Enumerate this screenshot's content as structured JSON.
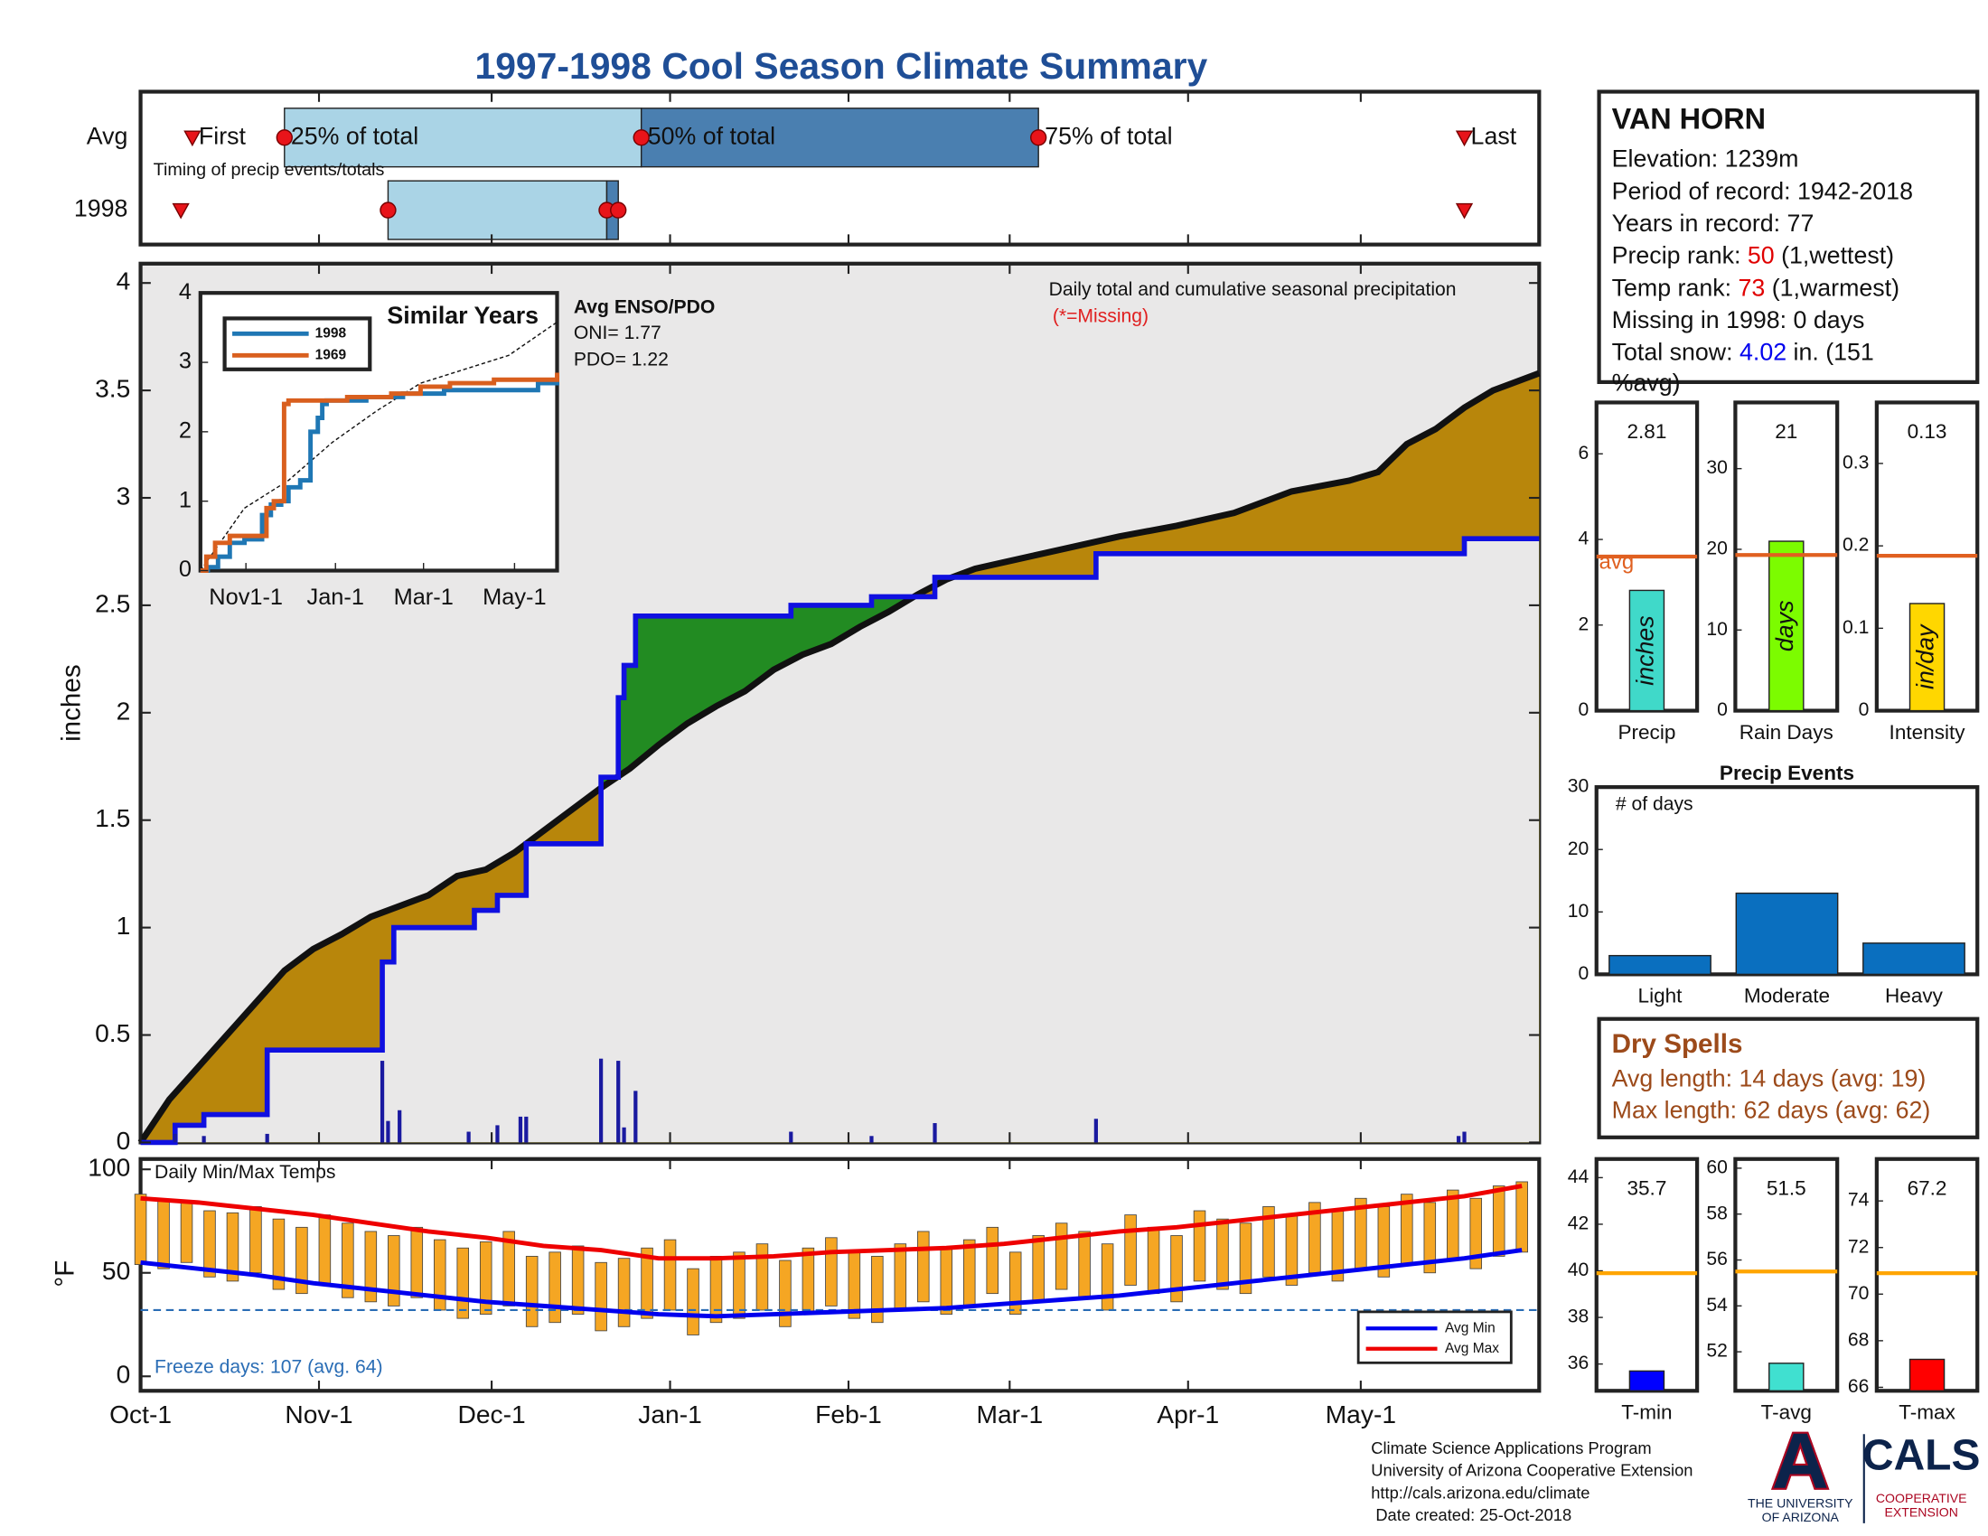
{
  "title": "1997-1998 Cool Season Climate Summary",
  "chart_data": [
    {
      "type": "timeline",
      "note": "Timing of precip events/totals",
      "xlim": [
        0,
        243
      ],
      "marker_labels": {
        "first": "First",
        "q25": "25% of total",
        "q50": "50% of total",
        "q75": "75% of total",
        "last": "Last"
      },
      "colors": {
        "early": "#aad4e6",
        "late": "#4a7fb0",
        "marker": "#e8141a"
      },
      "rows": [
        {
          "label": "Avg",
          "first": 9,
          "q25": 25,
          "q50": 87,
          "q75": 156,
          "last": 230
        },
        {
          "label": "1998",
          "first": 7,
          "q25": 43,
          "q50": 81,
          "q75": 83,
          "last": 230
        }
      ]
    },
    {
      "type": "area",
      "ylabel": "inches",
      "annotation": "Daily total and cumulative seasonal precipitation",
      "missing_note": "(*=Missing)",
      "xlim": [
        0,
        243
      ],
      "ylim": [
        0,
        4.09
      ],
      "yticks": [
        0,
        0.5,
        1,
        1.5,
        2,
        2.5,
        3,
        3.5,
        4
      ],
      "background": "#e9e8e8",
      "above_avg_color": "#228b22",
      "below_avg_color": "#b8860b",
      "average": {
        "color": "#111111",
        "x": [
          0,
          5,
          10,
          15,
          20,
          25,
          30,
          35,
          40,
          45,
          50,
          55,
          60,
          65,
          70,
          75,
          80,
          85,
          90,
          95,
          100,
          105,
          110,
          115,
          120,
          125,
          130,
          135,
          140,
          145,
          150,
          155,
          160,
          170,
          180,
          190,
          200,
          210,
          215,
          220,
          225,
          230,
          235,
          243
        ],
        "values": [
          0,
          0.2,
          0.35,
          0.5,
          0.65,
          0.8,
          0.9,
          0.97,
          1.05,
          1.1,
          1.15,
          1.24,
          1.27,
          1.35,
          1.45,
          1.55,
          1.65,
          1.74,
          1.85,
          1.95,
          2.03,
          2.1,
          2.2,
          2.27,
          2.32,
          2.4,
          2.47,
          2.55,
          2.62,
          2.67,
          2.7,
          2.73,
          2.76,
          2.82,
          2.87,
          2.93,
          3.03,
          3.08,
          3.12,
          3.25,
          3.32,
          3.42,
          3.5,
          3.58
        ]
      },
      "observed": {
        "color": "#1010e0",
        "x": [
          0,
          6,
          11,
          22,
          42,
          44,
          58,
          62,
          67,
          80,
          83,
          84,
          86,
          113,
          127,
          138,
          166,
          230,
          243
        ],
        "values": [
          0,
          0.08,
          0.13,
          0.43,
          0.84,
          1.0,
          1.08,
          1.15,
          1.39,
          1.7,
          2.07,
          2.22,
          2.45,
          2.5,
          2.54,
          2.63,
          2.74,
          2.81,
          2.81
        ]
      },
      "daily": {
        "color": "#1a1aa0",
        "x": [
          6,
          11,
          22,
          42,
          43,
          45,
          57,
          62,
          66,
          67,
          80,
          83,
          84,
          86,
          113,
          127,
          138,
          166,
          229,
          230
        ],
        "values": [
          0.04,
          0.03,
          0.04,
          0.38,
          0.1,
          0.15,
          0.05,
          0.08,
          0.12,
          0.12,
          0.39,
          0.38,
          0.07,
          0.24,
          0.05,
          0.03,
          0.09,
          0.11,
          0.03,
          0.05
        ]
      }
    },
    {
      "type": "line",
      "title": "Similar Years",
      "xlim": [
        0,
        243
      ],
      "ylim": [
        0,
        4
      ],
      "yticks": [
        0,
        1,
        2,
        3,
        4
      ],
      "xticks": [
        {
          "value": 31,
          "label": "Nov1-1"
        },
        {
          "value": 92,
          "label": "Jan-1"
        },
        {
          "value": 152,
          "label": "Mar-1"
        },
        {
          "value": 214,
          "label": "May-1"
        }
      ],
      "series": [
        {
          "name": "1998",
          "color": "#1f77b4",
          "x": [
            0,
            5,
            12,
            20,
            30,
            42,
            48,
            55,
            60,
            68,
            75,
            80,
            83,
            86,
            100,
            113,
            127,
            138,
            166,
            200,
            230,
            243
          ],
          "values": [
            0,
            0.05,
            0.2,
            0.4,
            0.45,
            0.8,
            0.95,
            1.0,
            1.2,
            1.3,
            2.0,
            2.2,
            2.4,
            2.45,
            2.45,
            2.5,
            2.5,
            2.55,
            2.6,
            2.6,
            2.7,
            2.81
          ]
        },
        {
          "name": "1969",
          "color": "#d95f1e",
          "x": [
            0,
            4,
            10,
            20,
            35,
            45,
            50,
            57,
            60,
            100,
            130,
            150,
            170,
            200,
            240,
            243
          ],
          "values": [
            0,
            0.2,
            0.4,
            0.5,
            0.5,
            0.9,
            1.0,
            2.4,
            2.45,
            2.5,
            2.55,
            2.65,
            2.7,
            2.75,
            2.75,
            2.85
          ]
        }
      ],
      "average": {
        "color": "#111111",
        "x": [
          0,
          30,
          60,
          90,
          120,
          150,
          180,
          210,
          243
        ],
        "values": [
          0,
          0.9,
          1.3,
          1.85,
          2.3,
          2.7,
          2.9,
          3.1,
          3.58
        ]
      },
      "enso": {
        "title": "Avg ENSO/PDO",
        "lines": [
          "ONI= 1.77",
          "PDO= 1.22"
        ]
      }
    },
    {
      "type": "bar",
      "categories": [
        "Precip"
      ],
      "values": [
        2.81
      ],
      "color": "#40d9c9",
      "bar_label": "inches",
      "avg": 3.6,
      "avg_label": "avg",
      "avg_color": "#e06020",
      "ylim": [
        0,
        7.2
      ],
      "yticks": [
        0,
        2,
        4,
        6
      ]
    },
    {
      "type": "bar",
      "categories": [
        "Rain Days"
      ],
      "values": [
        21
      ],
      "color": "#7cfc00",
      "bar_label": "days",
      "avg": 19.3,
      "avg_color": "#e06020",
      "ylim": [
        0,
        38.2
      ],
      "yticks": [
        0,
        10,
        20,
        30
      ]
    },
    {
      "type": "bar",
      "categories": [
        "Intensity"
      ],
      "values": [
        0.13
      ],
      "color": "#ffd700",
      "bar_label": "in/day",
      "avg": 0.188,
      "avg_color": "#e06020",
      "ylim": [
        0,
        0.374
      ],
      "yticks": [
        0,
        0.1,
        0.2,
        0.3
      ]
    },
    {
      "type": "bar",
      "title": "Precip Events",
      "note": "# of days",
      "categories": [
        "Light",
        "Moderate",
        "Heavy"
      ],
      "values": [
        3,
        13,
        5
      ],
      "color": "#0a6fbf",
      "ylim": [
        0,
        30
      ],
      "yticks": [
        0,
        10,
        20,
        30
      ]
    },
    {
      "type": "bar",
      "categories": [
        "T-min"
      ],
      "values": [
        35.7
      ],
      "color": "#0000ff",
      "avg": 39.9,
      "avg_color": "#ffa500",
      "ylim": [
        34.85,
        44.8
      ],
      "yticks": [
        36,
        38,
        40,
        42,
        44
      ]
    },
    {
      "type": "bar",
      "categories": [
        "T-avg"
      ],
      "values": [
        51.5
      ],
      "color": "#40e0d0",
      "avg": 55.5,
      "avg_color": "#ffa500",
      "ylim": [
        50.3,
        60.4
      ],
      "yticks": [
        52,
        54,
        56,
        58,
        60
      ]
    },
    {
      "type": "bar",
      "categories": [
        "T-max"
      ],
      "values": [
        67.2
      ],
      "color": "#ff0000",
      "avg": 70.9,
      "avg_color": "#ffa500",
      "ylim": [
        65.85,
        75.8
      ],
      "yticks": [
        66,
        68,
        70,
        72,
        74
      ]
    },
    {
      "type": "range",
      "title": "Daily Min/Max Temps",
      "ylabel": "°F",
      "xlim": [
        0,
        243
      ],
      "ylim": [
        -7,
        105
      ],
      "yticks": [
        0,
        50,
        100
      ],
      "xticks": [
        {
          "value": 0,
          "label": "Oct-1"
        },
        {
          "value": 31,
          "label": "Nov-1"
        },
        {
          "value": 61,
          "label": "Dec-1"
        },
        {
          "value": 92,
          "label": "Jan-1"
        },
        {
          "value": 123,
          "label": "Feb-1"
        },
        {
          "value": 151,
          "label": "Mar-1"
        },
        {
          "value": 182,
          "label": "Apr-1"
        },
        {
          "value": 212,
          "label": "May-1"
        }
      ],
      "daily": {
        "color": "#f5a623",
        "x": [
          0,
          4,
          8,
          12,
          16,
          20,
          24,
          28,
          32,
          36,
          40,
          44,
          48,
          52,
          56,
          60,
          64,
          68,
          72,
          76,
          80,
          84,
          88,
          92,
          96,
          100,
          104,
          108,
          112,
          116,
          120,
          124,
          128,
          132,
          136,
          140,
          144,
          148,
          152,
          156,
          160,
          164,
          168,
          172,
          176,
          180,
          184,
          188,
          192,
          196,
          200,
          204,
          208,
          212,
          216,
          220,
          224,
          228,
          232,
          236,
          240
        ],
        "max": [
          88,
          85,
          84,
          80,
          79,
          82,
          76,
          72,
          78,
          74,
          70,
          68,
          72,
          66,
          62,
          65,
          70,
          58,
          60,
          63,
          55,
          57,
          62,
          66,
          52,
          58,
          60,
          64,
          56,
          62,
          67,
          60,
          58,
          64,
          70,
          62,
          66,
          72,
          60,
          68,
          74,
          70,
          64,
          78,
          72,
          68,
          80,
          76,
          74,
          82,
          78,
          84,
          80,
          86,
          82,
          88,
          84,
          90,
          86,
          92,
          94
        ],
        "min": [
          54,
          52,
          55,
          48,
          46,
          50,
          42,
          40,
          44,
          38,
          36,
          34,
          38,
          32,
          28,
          30,
          34,
          24,
          26,
          30,
          22,
          24,
          28,
          32,
          20,
          26,
          28,
          32,
          24,
          30,
          34,
          28,
          26,
          32,
          36,
          30,
          34,
          40,
          30,
          36,
          42,
          38,
          32,
          44,
          40,
          36,
          46,
          42,
          40,
          48,
          44,
          50,
          46,
          52,
          48,
          54,
          50,
          56,
          52,
          58,
          60
        ]
      },
      "series": [
        {
          "name": "Avg Min",
          "color": "#0000ee",
          "x": [
            0,
            10,
            20,
            30,
            40,
            50,
            60,
            70,
            80,
            90,
            100,
            110,
            120,
            130,
            140,
            150,
            160,
            170,
            180,
            190,
            200,
            210,
            220,
            230,
            240
          ],
          "values": [
            55,
            52,
            49,
            45,
            42,
            39,
            36,
            34,
            32,
            30,
            29,
            30,
            31,
            32,
            33,
            35,
            37,
            39,
            42,
            45,
            48,
            51,
            54,
            57,
            61
          ]
        },
        {
          "name": "Avg Max",
          "color": "#ee0000",
          "x": [
            0,
            10,
            20,
            30,
            40,
            50,
            60,
            70,
            80,
            90,
            100,
            110,
            120,
            130,
            140,
            150,
            160,
            170,
            180,
            190,
            200,
            210,
            220,
            230,
            240
          ],
          "values": [
            86,
            84,
            81,
            78,
            74,
            70,
            67,
            63,
            61,
            57,
            57,
            58,
            60,
            61,
            62,
            64,
            67,
            70,
            72,
            75,
            78,
            81,
            84,
            87,
            92
          ]
        }
      ],
      "freeze": {
        "value": 32,
        "label": "Freeze days: 107 (avg. 64)",
        "color": "#2a6db5"
      }
    }
  ],
  "station": {
    "name": "VAN HORN",
    "lines": [
      {
        "parts": [
          "Elevation: 1239m"
        ]
      },
      {
        "parts": [
          "Period of record: 1942-2018"
        ]
      },
      {
        "parts": [
          "Years in record: 77"
        ]
      },
      {
        "parts": [
          "Precip rank: ",
          50,
          " (1,wettest)"
        ],
        "accent": "#e00000"
      },
      {
        "parts": [
          "Temp rank: ",
          73,
          " (1,warmest)"
        ],
        "accent": "#e00000"
      },
      {
        "parts": [
          "Missing in 1998: 0 days"
        ]
      },
      {
        "parts": [
          "Total snow: ",
          4.02,
          " in. (151",
          "%avg)"
        ],
        "accent": "#0000ee"
      }
    ]
  },
  "dry_spells": {
    "title": "Dry Spells",
    "color": "#9c4a1a",
    "lines": [
      "Avg length: 14 days (avg: 19)",
      "Max length: 62 days (avg: 62)"
    ]
  },
  "footer": {
    "lines": [
      "Climate Science Applications Program",
      "University of Arizona Cooperative Extension",
      "http://cals.arizona.edu/climate",
      " Date created: 25-Oct-2018"
    ],
    "logo": {
      "mark": "A",
      "university": [
        "THE UNIVERSITY",
        "OF ARIZONA"
      ],
      "cals": "CALS",
      "extension": [
        "COOPERATIVE",
        "EXTENSION"
      ]
    }
  }
}
